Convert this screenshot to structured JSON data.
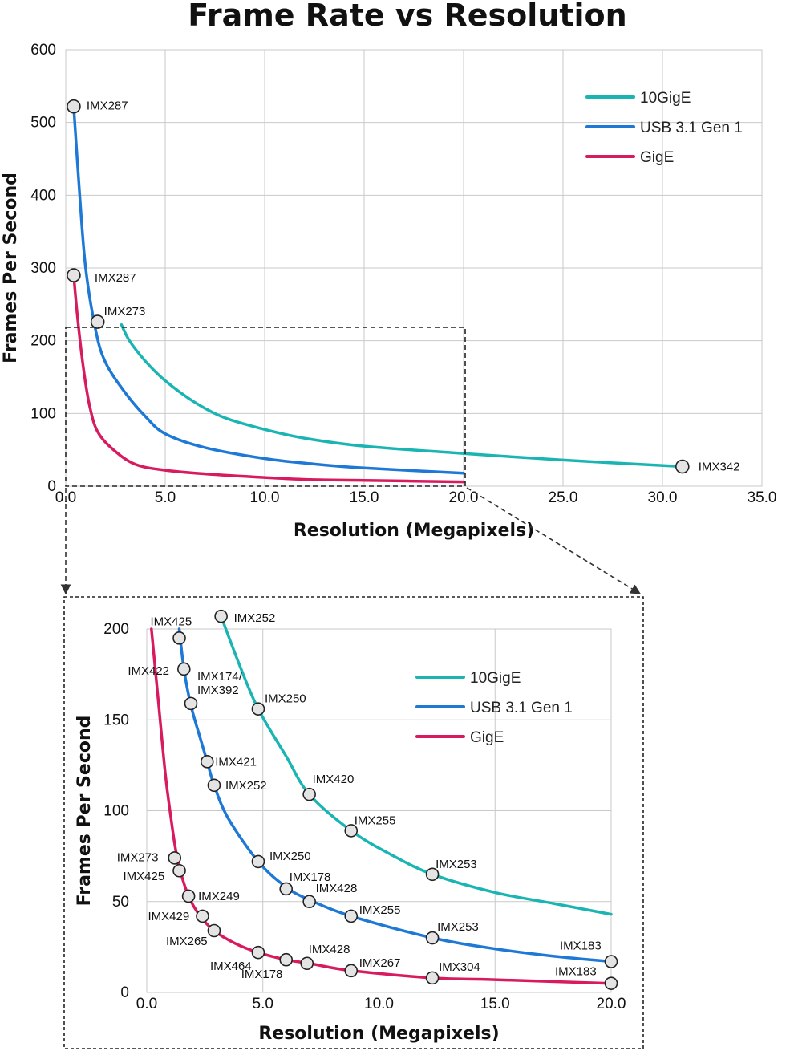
{
  "chart_data": [
    {
      "type": "line",
      "title": "Frame Rate vs Resolution",
      "xlabel": "Resolution (Megapixels)",
      "ylabel": "Frames Per Second",
      "xlim": [
        0,
        35
      ],
      "ylim": [
        0,
        600
      ],
      "xticks": [
        "0.0",
        "5.0",
        "10.0",
        "15.0",
        "20.0",
        "25.0",
        "30.0",
        "35.0"
      ],
      "yticks": [
        "0",
        "100",
        "200",
        "300",
        "400",
        "500",
        "600"
      ],
      "grid": true,
      "legend_position": "top-right",
      "series": [
        {
          "name": "10GigE",
          "color": "#1ab5b2",
          "points": [
            [
              2.8,
              222
            ],
            [
              3.2,
              200
            ],
            [
              4.0,
              172
            ],
            [
              5.0,
              145
            ],
            [
              6.5,
              115
            ],
            [
              8.0,
              94
            ],
            [
              10.0,
              78
            ],
            [
              12.0,
              66
            ],
            [
              15.0,
              55
            ],
            [
              20.0,
              45
            ],
            [
              25.0,
              36
            ],
            [
              31.0,
              27
            ]
          ],
          "markers": [
            {
              "x": 31.0,
              "y": 27,
              "label": "IMX342"
            }
          ]
        },
        {
          "name": "USB 3.1 Gen 1",
          "color": "#1d78d6",
          "points": [
            [
              0.4,
              522
            ],
            [
              0.7,
              400
            ],
            [
              1.0,
              300
            ],
            [
              1.5,
              215
            ],
            [
              2.0,
              170
            ],
            [
              3.0,
              128
            ],
            [
              4.0,
              96
            ],
            [
              5.0,
              72
            ],
            [
              7.0,
              53
            ],
            [
              10.0,
              38
            ],
            [
              12.3,
              31
            ],
            [
              15.0,
              25
            ],
            [
              20.0,
              18
            ]
          ],
          "markers": [
            {
              "x": 0.4,
              "y": 522,
              "label": "IMX287"
            },
            {
              "x": 1.6,
              "y": 226,
              "label": "IMX273"
            }
          ]
        },
        {
          "name": "GigE",
          "color": "#d81b5f",
          "points": [
            [
              0.4,
              290
            ],
            [
              0.6,
              230
            ],
            [
              0.9,
              160
            ],
            [
              1.2,
              110
            ],
            [
              1.6,
              75
            ],
            [
              2.4,
              50
            ],
            [
              3.5,
              30
            ],
            [
              5.0,
              22
            ],
            [
              7.0,
              17
            ],
            [
              10.0,
              12
            ],
            [
              12.3,
              9
            ],
            [
              15.0,
              8
            ],
            [
              20.0,
              6
            ]
          ],
          "markers": [
            {
              "x": 0.4,
              "y": 290,
              "label": "IMX287"
            }
          ]
        }
      ]
    },
    {
      "type": "line",
      "title": "",
      "xlabel": "Resolution (Megapixels)",
      "ylabel": "Frames Per Second",
      "xlim": [
        0,
        20
      ],
      "ylim": [
        0,
        200
      ],
      "xticks": [
        "0.0",
        "5.0",
        "10.0",
        "15.0",
        "20.0"
      ],
      "yticks": [
        "0",
        "50",
        "100",
        "150",
        "200"
      ],
      "grid": true,
      "legend_position": "top-right",
      "series": [
        {
          "name": "10GigE",
          "color": "#1ab5b2",
          "points": [
            [
              3.2,
              207
            ],
            [
              4.0,
              180
            ],
            [
              4.8,
              156
            ],
            [
              6.0,
              130
            ],
            [
              7.0,
              109
            ],
            [
              8.8,
              89
            ],
            [
              10.5,
              76
            ],
            [
              12.3,
              65
            ],
            [
              15.0,
              55
            ],
            [
              17.5,
              49
            ],
            [
              20.0,
              43
            ]
          ],
          "markers": [
            {
              "x": 3.2,
              "y": 207,
              "label": "IMX252"
            },
            {
              "x": 4.8,
              "y": 156,
              "label": "IMX250"
            },
            {
              "x": 7.0,
              "y": 109,
              "label": "IMX420"
            },
            {
              "x": 8.8,
              "y": 89,
              "label": "IMX255"
            },
            {
              "x": 12.3,
              "y": 65,
              "label": "IMX253"
            }
          ]
        },
        {
          "name": "USB 3.1 Gen 1",
          "color": "#1d78d6",
          "points": [
            [
              1.4,
              200
            ],
            [
              1.6,
              178
            ],
            [
              1.9,
              158
            ],
            [
              2.3,
              140
            ],
            [
              2.6,
              127
            ],
            [
              2.9,
              114
            ],
            [
              3.5,
              96
            ],
            [
              4.8,
              72
            ],
            [
              6.0,
              58
            ],
            [
              7.0,
              51
            ],
            [
              8.8,
              42
            ],
            [
              12.3,
              30
            ],
            [
              15.0,
              24
            ],
            [
              17.5,
              20
            ],
            [
              20.0,
              17
            ]
          ],
          "markers": [
            {
              "x": 1.4,
              "y": 195,
              "label": "IMX425"
            },
            {
              "x": 1.6,
              "y": 178,
              "label": "IMX422"
            },
            {
              "x": 1.9,
              "y": 159,
              "label": "IMX174/ IMX392"
            },
            {
              "x": 2.6,
              "y": 127,
              "label": "IMX421"
            },
            {
              "x": 2.9,
              "y": 114,
              "label": "IMX252"
            },
            {
              "x": 4.8,
              "y": 72,
              "label": "IMX250"
            },
            {
              "x": 6.0,
              "y": 57,
              "label": "IMX178"
            },
            {
              "x": 7.0,
              "y": 50,
              "label": "IMX428"
            },
            {
              "x": 8.8,
              "y": 42,
              "label": "IMX255"
            },
            {
              "x": 12.3,
              "y": 30,
              "label": "IMX253"
            },
            {
              "x": 20.0,
              "y": 17,
              "label": "IMX183"
            }
          ]
        },
        {
          "name": "GigE",
          "color": "#d81b5f",
          "points": [
            [
              0.2,
              200
            ],
            [
              0.5,
              160
            ],
            [
              0.8,
              120
            ],
            [
              1.0,
              100
            ],
            [
              1.2,
              82
            ],
            [
              1.4,
              69
            ],
            [
              1.8,
              53
            ],
            [
              2.3,
              42
            ],
            [
              2.9,
              34
            ],
            [
              3.8,
              27
            ],
            [
              4.8,
              22
            ],
            [
              6.0,
              18
            ],
            [
              7.0,
              16
            ],
            [
              8.8,
              12
            ],
            [
              12.3,
              8
            ],
            [
              15.0,
              7
            ],
            [
              20.0,
              5
            ]
          ],
          "markers": [
            {
              "x": 1.2,
              "y": 74,
              "label": "IMX273"
            },
            {
              "x": 1.4,
              "y": 67,
              "label": "IMX425"
            },
            {
              "x": 1.8,
              "y": 53,
              "label": "IMX249"
            },
            {
              "x": 2.4,
              "y": 42,
              "label": "IMX429"
            },
            {
              "x": 2.9,
              "y": 34,
              "label": "IMX265"
            },
            {
              "x": 4.8,
              "y": 22,
              "label": "IMX464"
            },
            {
              "x": 6.0,
              "y": 18,
              "label": "IMX178"
            },
            {
              "x": 6.9,
              "y": 16,
              "label": "IMX428"
            },
            {
              "x": 8.8,
              "y": 12,
              "label": "IMX267"
            },
            {
              "x": 12.3,
              "y": 8,
              "label": "IMX304"
            },
            {
              "x": 20.0,
              "y": 5,
              "label": "IMX183"
            }
          ]
        }
      ]
    }
  ]
}
